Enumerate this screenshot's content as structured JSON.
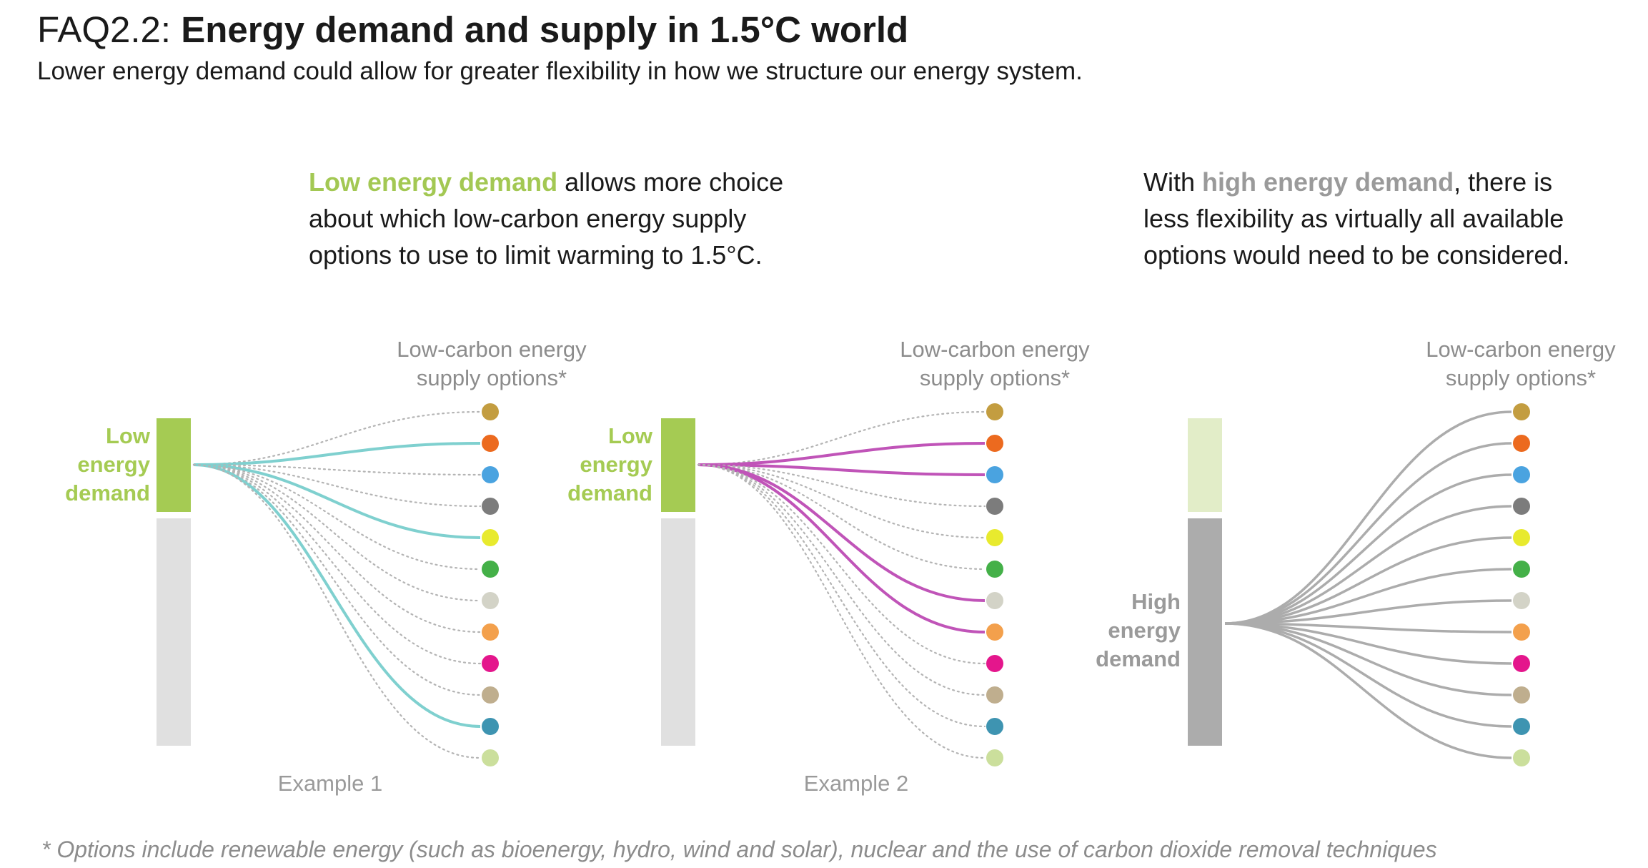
{
  "header": {
    "title_prefix": "FAQ2.2: ",
    "title_bold": "Energy demand and supply in 1.5°C world",
    "subtitle": "Lower energy demand could allow for greater flexibility in how we structure our energy system."
  },
  "descriptions": {
    "low": {
      "highlight": "Low energy demand",
      "line1_rest": " allows more choice",
      "line2": "about which low-carbon energy supply",
      "line3": "options to use to limit warming to 1.5°C."
    },
    "high": {
      "line1_start": "With ",
      "highlight": "high energy demand",
      "line1_end": ", there is",
      "line2": "less flexibility as virtually all available",
      "line3": "options would need to be considered."
    }
  },
  "colors": {
    "low_demand": "#a5cb53",
    "low_demand_faded": "#e2edc8",
    "unused_bar": "#e0e0e0",
    "high_demand": "#acacac",
    "example1_line": "#7fd0cf",
    "example2_line": "#c054b8",
    "high_line": "#acacac",
    "dotted_line": "#b4b4b4",
    "header_text": "#8c8c8c",
    "example_label": "#9a9a9a"
  },
  "option_colors": [
    "#c39d40",
    "#ec6a1f",
    "#4aa3e0",
    "#7c7c7c",
    "#e8ea2e",
    "#44b048",
    "#d3d3c7",
    "#f3a04c",
    "#e4168c",
    "#bfae8e",
    "#3e94b1",
    "#cbdf9c"
  ],
  "panels": [
    {
      "id": "example-1",
      "options_header": [
        "Low-carbon energy",
        "supply options*"
      ],
      "demand_label": [
        "Low",
        "energy",
        "demand"
      ],
      "demand_type": "low",
      "selected_options": [
        1,
        4,
        10
      ],
      "example_label": "Example 1",
      "line_color_key": "example1_line"
    },
    {
      "id": "example-2",
      "options_header": [
        "Low-carbon energy",
        "supply options*"
      ],
      "demand_label": [
        "Low",
        "energy",
        "demand"
      ],
      "demand_type": "low",
      "selected_options": [
        1,
        2,
        6,
        7
      ],
      "example_label": "Example 2",
      "line_color_key": "example2_line"
    },
    {
      "id": "high-demand",
      "options_header": [
        "Low-carbon energy",
        "supply options*"
      ],
      "demand_label": [
        "High",
        "energy",
        "demand"
      ],
      "demand_type": "high",
      "selected_options": [
        0,
        1,
        2,
        3,
        4,
        5,
        6,
        7,
        8,
        9,
        10,
        11
      ],
      "example_label": "",
      "line_color_key": "high_line"
    }
  ],
  "footnote": "* Options include renewable energy (such as bioenergy, hydro, wind and solar), nuclear and the use of carbon dioxide removal techniques"
}
